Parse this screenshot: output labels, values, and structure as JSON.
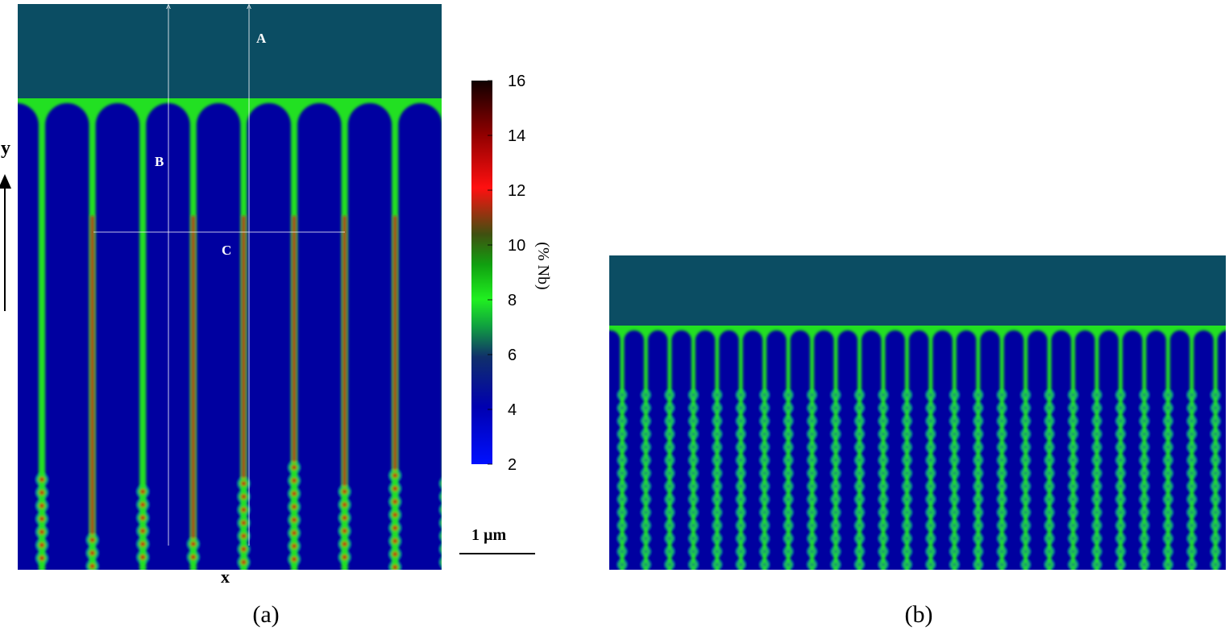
{
  "panel_a": {
    "point_labels": [
      "A",
      "B",
      "C"
    ],
    "y_axis": "y",
    "x_axis": "x",
    "caption": "(a)"
  },
  "colorbar": {
    "title": "(% Nb)",
    "ticks": [
      2,
      4,
      6,
      8,
      10,
      12,
      14,
      16
    ]
  },
  "scale_bar": "1 µm",
  "panel_b": {
    "caption": "(b)"
  }
}
